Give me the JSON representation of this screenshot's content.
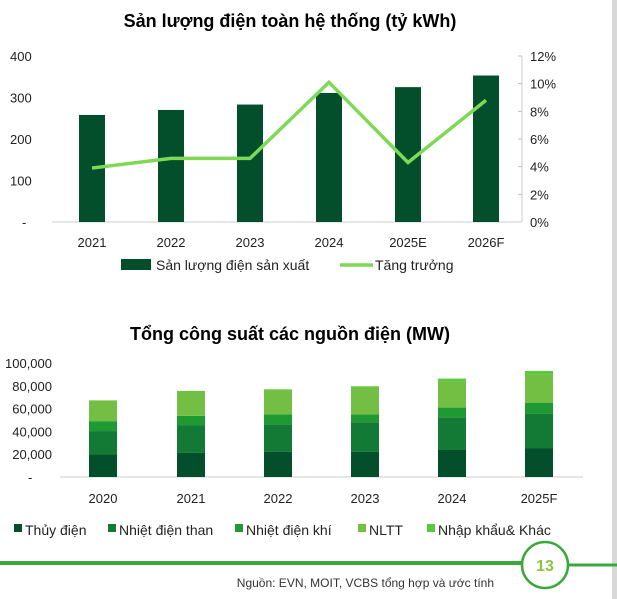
{
  "chart_data": [
    {
      "type": "bar+line",
      "title": "Sản lượng điện toàn hệ thống (tỷ kWh)",
      "categories": [
        "2021",
        "2022",
        "2023",
        "2024",
        "2025E",
        "2026F"
      ],
      "ylim": [
        0,
        400
      ],
      "y_ticks": [
        "-",
        "100",
        "200",
        "300",
        "400"
      ],
      "y2lim": [
        0,
        0.12
      ],
      "y2_ticks": [
        "0%",
        "2%",
        "4%",
        "6%",
        "8%",
        "10%",
        "12%"
      ],
      "series": [
        {
          "name": "Sản lượng điện sản xuất",
          "type": "bar",
          "axis": "left",
          "color": "#034f2c",
          "values": [
            258,
            270,
            283,
            311,
            325,
            353
          ]
        },
        {
          "name": "Tăng trưởng",
          "type": "line",
          "axis": "right",
          "color": "#7ed957",
          "values": [
            0.039,
            0.046,
            0.046,
            0.101,
            0.043,
            0.088
          ]
        }
      ],
      "legend": "bottom",
      "grid": false
    },
    {
      "type": "stacked-bar",
      "title": "Tổng công suất các nguồn điện (MW)",
      "categories": [
        "2020",
        "2021",
        "2022",
        "2023",
        "2024",
        "2025F"
      ],
      "ylim": [
        0,
        100000
      ],
      "y_ticks": [
        "-",
        "20,000",
        "40,000",
        "60,000",
        "80,000",
        "100,000"
      ],
      "series": [
        {
          "name": "Thủy điện",
          "color": "#034f2c",
          "values": [
            19700,
            21100,
            22000,
            22000,
            23700,
            25000
          ]
        },
        {
          "name": "Nhiệt điện than",
          "color": "#137a36",
          "values": [
            20600,
            24100,
            24300,
            26100,
            28700,
            30600
          ]
        },
        {
          "name": "Nhiệt điện khí",
          "color": "#1f9a33",
          "values": [
            8700,
            8500,
            8700,
            6900,
            8500,
            9600
          ]
        },
        {
          "name": "NLTT",
          "color": "#72bf44",
          "values": [
            18200,
            21300,
            21300,
            23900,
            22800,
            24400
          ]
        },
        {
          "name": "Nhập khẩu& Khác",
          "color": "#5cc83c",
          "values": [
            0,
            500,
            600,
            700,
            2600,
            3400
          ]
        }
      ],
      "legend": "bottom",
      "grid": false
    }
  ],
  "footer": {
    "source": "Nguồn: EVN, MOIT, VCBS tổng hợp và ước tính",
    "page_number": "13",
    "accent": "#3aa83a"
  }
}
